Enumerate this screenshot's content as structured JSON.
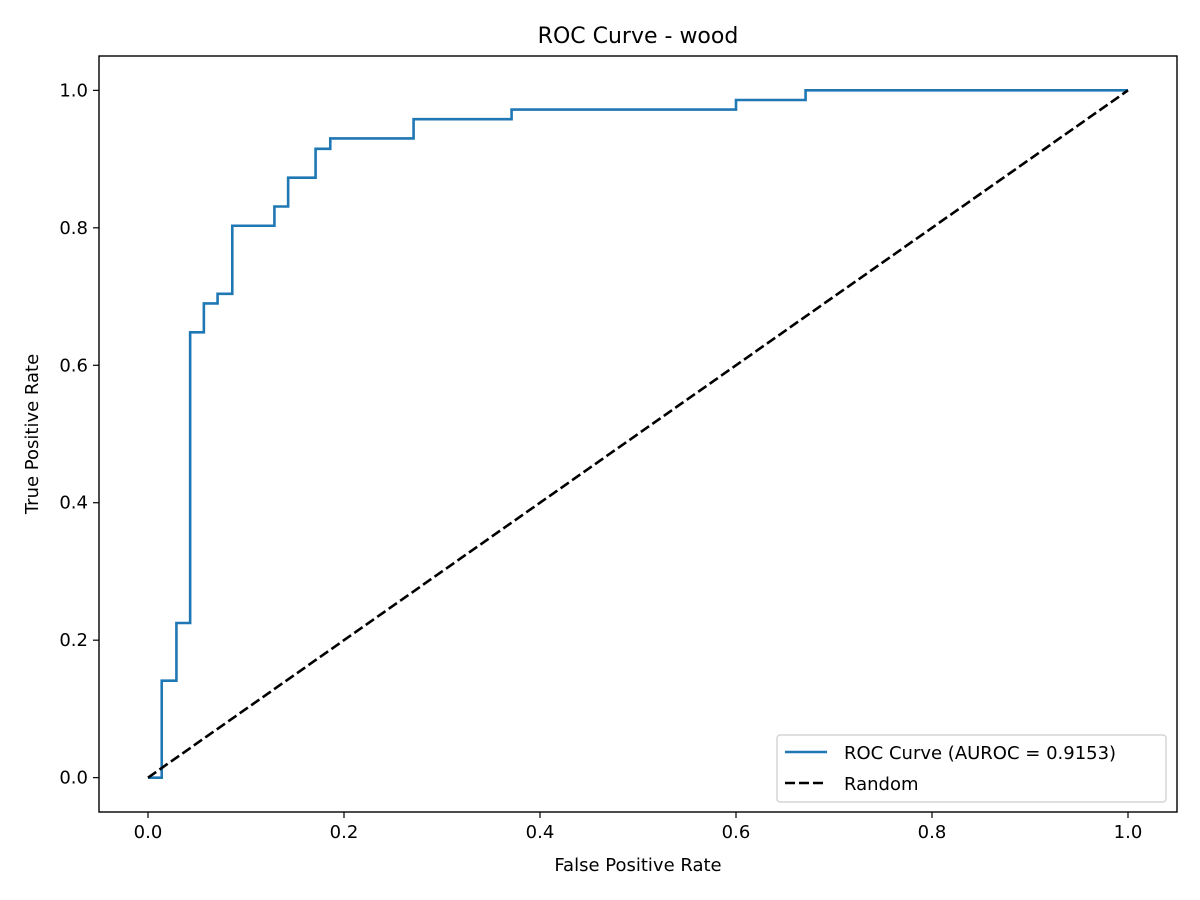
{
  "chart_data": {
    "type": "line",
    "title": "ROC Curve - wood",
    "xlabel": "False Positive Rate",
    "ylabel": "True Positive Rate",
    "xlim": [
      -0.05,
      1.05
    ],
    "ylim": [
      -0.05,
      1.05
    ],
    "x_ticks": [
      0.0,
      0.2,
      0.4,
      0.6,
      0.8,
      1.0
    ],
    "x_tick_labels": [
      "0.0",
      "0.2",
      "0.4",
      "0.6",
      "0.8",
      "1.0"
    ],
    "y_ticks": [
      0.0,
      0.2,
      0.4,
      0.6,
      0.8,
      1.0
    ],
    "y_tick_labels": [
      "0.0",
      "0.2",
      "0.4",
      "0.6",
      "0.8",
      "1.0"
    ],
    "grid": false,
    "legend_position": "lower right",
    "series": [
      {
        "name": "ROC Curve (AUROC = 0.9153)",
        "color": "#1f77b4",
        "style": "solid",
        "x": [
          0.0,
          0.014,
          0.014,
          0.029,
          0.029,
          0.043,
          0.043,
          0.057,
          0.057,
          0.071,
          0.071,
          0.086,
          0.086,
          0.129,
          0.129,
          0.143,
          0.143,
          0.171,
          0.171,
          0.186,
          0.186,
          0.271,
          0.271,
          0.371,
          0.371,
          0.6,
          0.6,
          0.671,
          0.671,
          1.0
        ],
        "y": [
          0.0,
          0.0,
          0.141,
          0.141,
          0.225,
          0.225,
          0.648,
          0.648,
          0.69,
          0.69,
          0.704,
          0.704,
          0.803,
          0.803,
          0.831,
          0.831,
          0.873,
          0.873,
          0.915,
          0.915,
          0.93,
          0.93,
          0.958,
          0.958,
          0.972,
          0.972,
          0.986,
          0.986,
          1.0,
          1.0
        ]
      },
      {
        "name": "Random",
        "color": "#000000",
        "style": "dashed",
        "x": [
          0.0,
          1.0
        ],
        "y": [
          0.0,
          1.0
        ]
      }
    ]
  }
}
